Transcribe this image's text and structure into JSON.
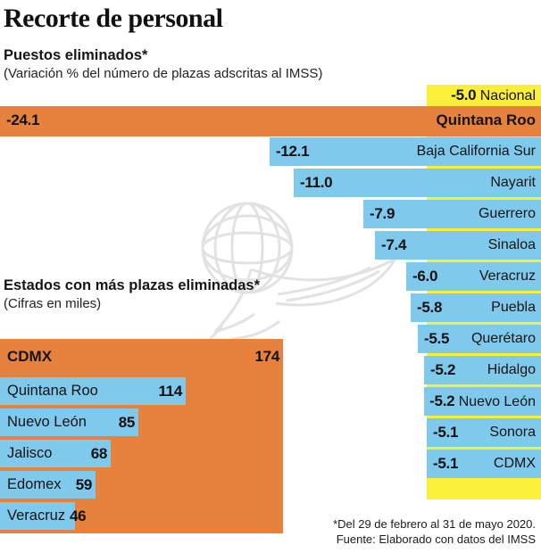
{
  "title": "Recorte de personal",
  "chart_data": [
    {
      "type": "bar",
      "title": "Puestos eliminados*",
      "subtitle": "(Variación % del número de plazas adscritas al IMSS)",
      "orientation": "horizontal, bars anchored to right edge",
      "unit": "percent change",
      "xlim": [
        -24.1,
        0
      ],
      "legend_position": "none",
      "grid": false,
      "rows": [
        {
          "label": "Nacional",
          "value": -5.0,
          "display": "-5.0",
          "style": "national"
        },
        {
          "label": "Quintana Roo",
          "value": -24.1,
          "display": "-24.1",
          "style": "highlight"
        },
        {
          "label": "Baja California Sur",
          "value": -12.1,
          "display": "-12.1"
        },
        {
          "label": "Nayarit",
          "value": -11.0,
          "display": "-11.0"
        },
        {
          "label": "Guerrero",
          "value": -7.9,
          "display": "-7.9"
        },
        {
          "label": "Sinaloa",
          "value": -7.4,
          "display": "-7.4"
        },
        {
          "label": "Veracruz",
          "value": -6.0,
          "display": "-6.0"
        },
        {
          "label": "Puebla",
          "value": -5.8,
          "display": "-5.8"
        },
        {
          "label": "Querétaro",
          "value": -5.5,
          "display": "-5.5"
        },
        {
          "label": "Hidalgo",
          "value": -5.2,
          "display": "-5.2"
        },
        {
          "label": "Nuevo León",
          "value": -5.2,
          "display": "-5.2",
          "inline": true
        },
        {
          "label": "Sonora",
          "value": -5.1,
          "display": "-5.1"
        },
        {
          "label": "CDMX",
          "value": -5.1,
          "display": "-5.1"
        }
      ]
    },
    {
      "type": "bar",
      "title": "Estados con más plazas eliminadas*",
      "subtitle": "(Cifras en miles)",
      "orientation": "horizontal, bars anchored to left edge",
      "unit": "thousands of jobs",
      "xlim": [
        0,
        174
      ],
      "legend_position": "none",
      "grid": false,
      "rows": [
        {
          "label": "CDMX",
          "value": 174,
          "display": "174",
          "style": "highlight"
        },
        {
          "label": "Quintana Roo",
          "value": 114,
          "display": "114"
        },
        {
          "label": "Nuevo León",
          "value": 85,
          "display": "85"
        },
        {
          "label": "Jalisco",
          "value": 68,
          "display": "68"
        },
        {
          "label": "Edomex",
          "value": 59,
          "display": "59"
        },
        {
          "label": "Veracruz",
          "value": 46,
          "display": "46"
        }
      ]
    }
  ],
  "footnote": {
    "line1": "*Del 29 de febrero al 31 de mayo 2020.",
    "line2": "Fuente: Elaborado con datos del IMSS"
  },
  "colors": {
    "orange": "#E6813E",
    "blue": "#7FC9EC",
    "yellow": "#F9EF39",
    "text": "#1A1A1A",
    "watermark": "#E2E2E2"
  },
  "watermark_icon": "el-economista-eagle-globe-watermark"
}
